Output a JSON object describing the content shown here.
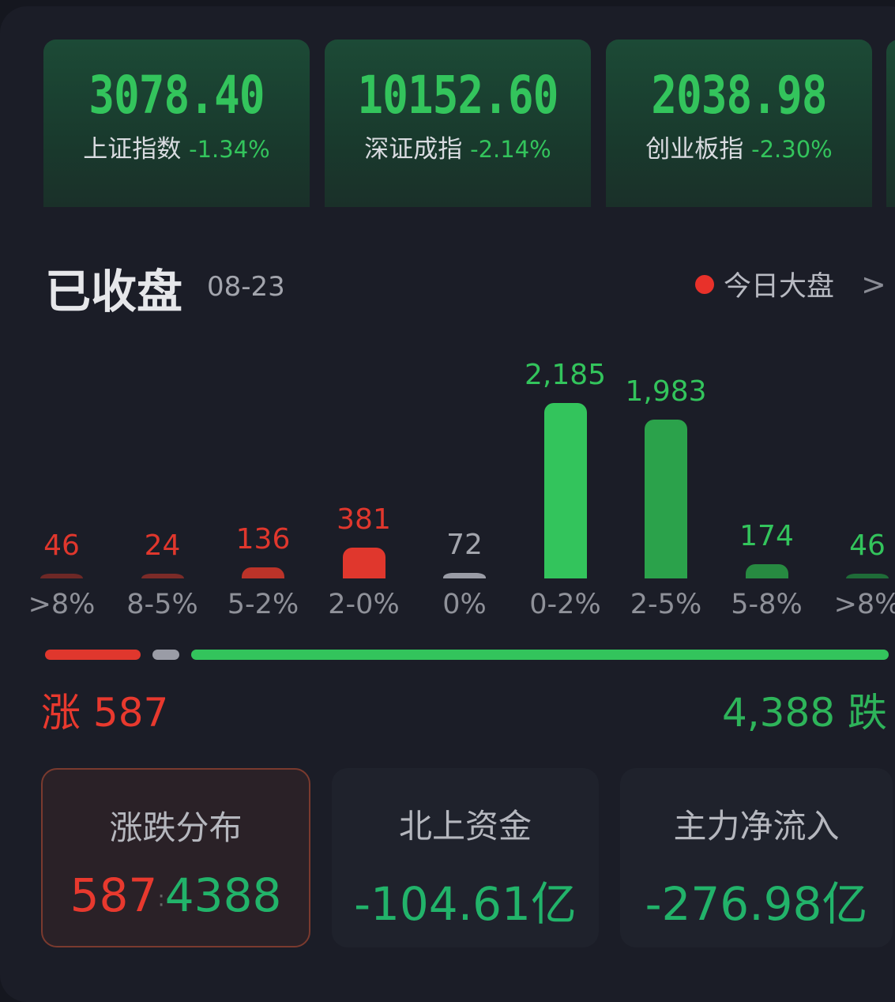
{
  "indices": [
    {
      "value": "3078.40",
      "name": "上证指数",
      "change": "-1.34%"
    },
    {
      "value": "10152.60",
      "name": "深证成指",
      "change": "-2.14%"
    },
    {
      "value": "2038.98",
      "name": "创业板指",
      "change": "-2.30%"
    }
  ],
  "header": {
    "title": "已收盘",
    "date": "08-23",
    "link": "今日大盘",
    "link_chevron": ">"
  },
  "chart_data": {
    "type": "bar",
    "categories": [
      ">8%",
      "8-5%",
      "5-2%",
      "2-0%",
      "0%",
      "0-2%",
      "2-5%",
      "5-8%",
      ">8%"
    ],
    "values": [
      46,
      24,
      136,
      381,
      72,
      2185,
      1983,
      174,
      46
    ],
    "value_labels": [
      "46",
      "24",
      "136",
      "381",
      "72",
      "2,185",
      "1,983",
      "174",
      "46"
    ],
    "colors": [
      "#6e2826",
      "#7c2b28",
      "#bb3329",
      "#e0372d",
      "#9a9ca6",
      "#33c45c",
      "#2ba24b",
      "#278a41",
      "#1f6c38"
    ],
    "label_colors": [
      "#e0372d",
      "#e0372d",
      "#e0372d",
      "#e0372d",
      "#a3a5ad",
      "#33c45c",
      "#33c45c",
      "#33c45c",
      "#33c45c"
    ]
  },
  "ratio_bar": {
    "up": 587,
    "flat": 72,
    "down": 4388,
    "up_color": "#e0372d",
    "flat_color": "#9a9ca6",
    "down_color": "#33c45c"
  },
  "summary": {
    "up_label": "涨 587",
    "down_label": "4,388 跌"
  },
  "cards": [
    {
      "title": "涨跌分布",
      "up": "587",
      "sep": ":",
      "down": "4388"
    },
    {
      "title": "北上资金",
      "value": "-104.61亿"
    },
    {
      "title": "主力净流入",
      "value": "-276.98亿"
    }
  ]
}
